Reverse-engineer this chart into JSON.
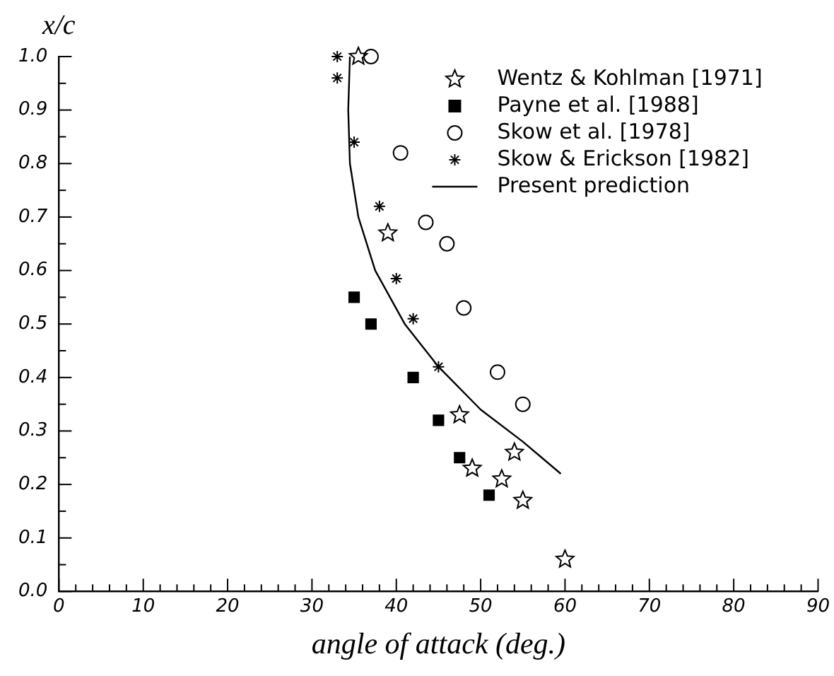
{
  "chart_data": {
    "type": "scatter",
    "xlabel": "angle of attack (deg.)",
    "ylabel": "x/c",
    "xlim": [
      0,
      90
    ],
    "xticks": [
      0,
      10,
      20,
      30,
      40,
      50,
      60,
      70,
      80,
      90
    ],
    "ylim": [
      0,
      1
    ],
    "yticks": [
      {
        "value": 0,
        "label": "0.0"
      },
      0.1,
      0.2,
      0.3,
      0.4,
      0.5,
      0.6,
      0.7,
      0.8,
      0.9,
      {
        "value": 1,
        "label": "1.0"
      }
    ],
    "grid": false,
    "legend": "top right",
    "series": [
      {
        "name": "Wentz & Kohlman [1971]",
        "color": "#000000",
        "marker": "star",
        "x": [
          35.5,
          39,
          47.5,
          54,
          49,
          52.5,
          55,
          60
        ],
        "values": [
          1.0,
          0.67,
          0.33,
          0.26,
          0.23,
          0.21,
          0.17,
          0.06
        ]
      },
      {
        "name": "Payne et al. [1988]",
        "color": "#000000",
        "marker": "square",
        "x": [
          35,
          37,
          42,
          45,
          47.5,
          51
        ],
        "values": [
          0.55,
          0.5,
          0.4,
          0.32,
          0.25,
          0.18
        ]
      },
      {
        "name": "Skow et al. [1978]",
        "color": "#000000",
        "marker": "circle",
        "x": [
          37,
          40.5,
          43.5,
          46,
          48,
          52,
          55
        ],
        "values": [
          1.0,
          0.82,
          0.69,
          0.65,
          0.53,
          0.41,
          0.35
        ]
      },
      {
        "name": "Skow & Erickson [1982]",
        "color": "#000000",
        "marker": "cross",
        "x": [
          33,
          33,
          35,
          38,
          40,
          42,
          45
        ],
        "values": [
          1.0,
          0.96,
          0.84,
          0.72,
          0.585,
          0.51,
          0.42
        ]
      },
      {
        "name": "Present prediction",
        "color": "#000000",
        "type": "line",
        "marker": "none",
        "x": [
          34.5,
          34.3,
          34.5,
          35.5,
          37.5,
          41,
          45,
          50,
          55,
          59.5
        ],
        "values": [
          1.0,
          0.9,
          0.8,
          0.7,
          0.6,
          0.5,
          0.42,
          0.34,
          0.28,
          0.22
        ]
      }
    ]
  }
}
